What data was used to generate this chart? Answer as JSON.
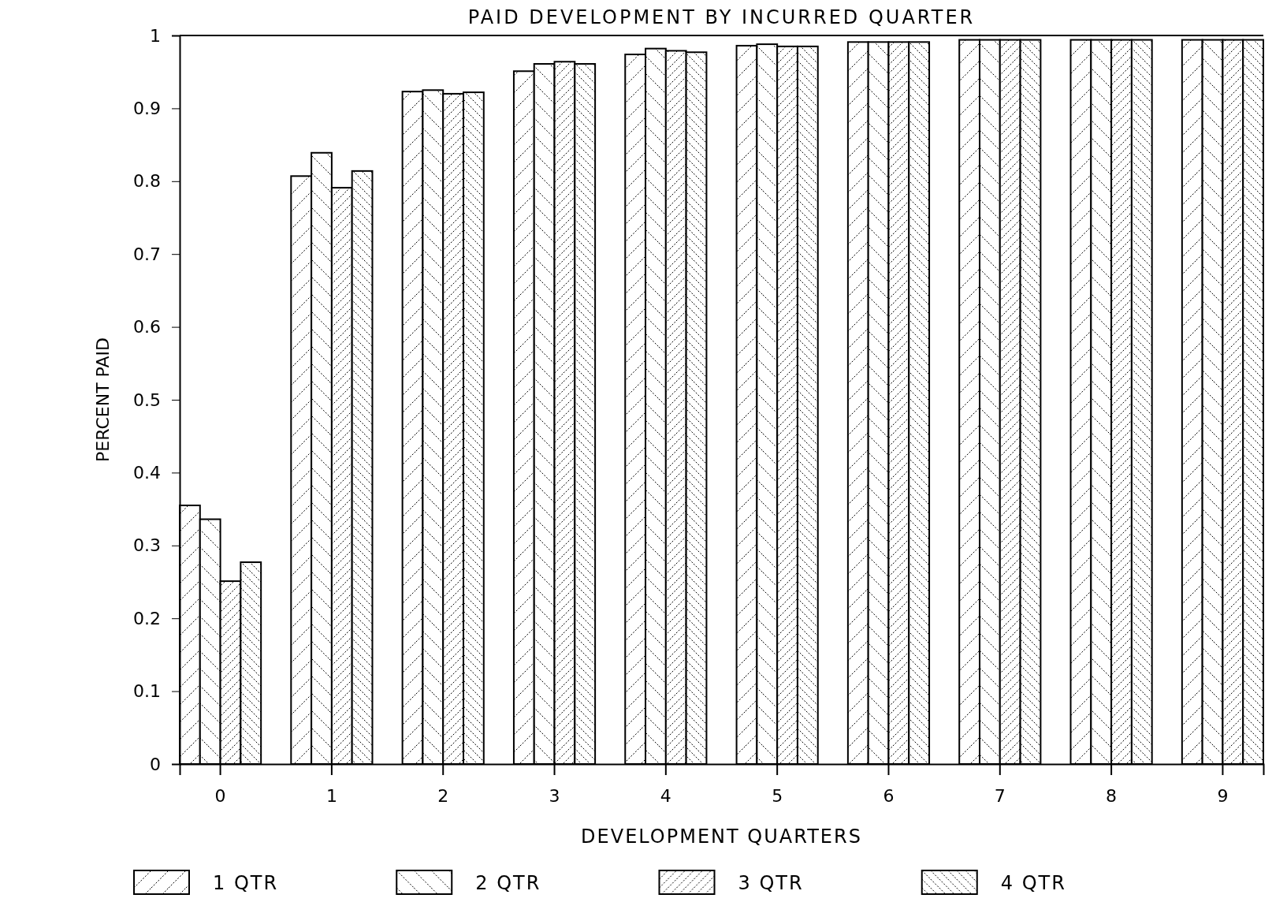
{
  "chart_data": {
    "type": "bar",
    "title": "PAID DEVELOPMENT BY INCURRED QUARTER",
    "xlabel": "DEVELOPMENT QUARTERS",
    "ylabel": "PERCENT PAID",
    "categories": [
      "0",
      "1",
      "2",
      "3",
      "4",
      "5",
      "6",
      "7",
      "8",
      "9"
    ],
    "series": [
      {
        "name": "1 QTR",
        "color": "#000000",
        "values": [
          0.355,
          0.807,
          0.923,
          0.951,
          0.974,
          0.986,
          0.991,
          0.994,
          0.994,
          0.994
        ]
      },
      {
        "name": "2 QTR",
        "color": "#000000",
        "values": [
          0.336,
          0.839,
          0.925,
          0.961,
          0.982,
          0.988,
          0.991,
          0.994,
          0.994,
          0.994
        ]
      },
      {
        "name": "3 QTR",
        "color": "#000000",
        "values": [
          0.251,
          0.791,
          0.92,
          0.964,
          0.979,
          0.985,
          0.991,
          0.994,
          0.994,
          0.994
        ]
      },
      {
        "name": "4 QTR",
        "color": "#000000",
        "values": [
          0.277,
          0.814,
          0.922,
          0.961,
          0.977,
          0.985,
          0.991,
          0.994,
          0.994,
          0.994
        ]
      }
    ],
    "ylim": [
      0,
      1
    ],
    "yticks": [
      0,
      0.1,
      0.2,
      0.3,
      0.4,
      0.5,
      0.6,
      0.7,
      0.8,
      0.9,
      1
    ],
    "grid": false,
    "legend": "bottom"
  }
}
